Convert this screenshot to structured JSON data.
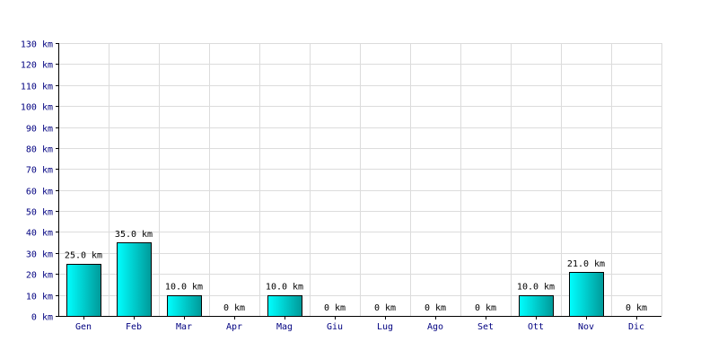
{
  "chart_data": {
    "type": "bar",
    "categories": [
      "Gen",
      "Feb",
      "Mar",
      "Apr",
      "Mag",
      "Giu",
      "Lug",
      "Ago",
      "Set",
      "Ott",
      "Nov",
      "Dic"
    ],
    "values": [
      25.0,
      35.0,
      10.0,
      0,
      10.0,
      0,
      0,
      0,
      0,
      10.0,
      21.0,
      0
    ],
    "data_labels": [
      "25.0 km",
      "35.0 km",
      "10.0 km",
      "0 km",
      "10.0 km",
      "0 km",
      "0 km",
      "0 km",
      "0 km",
      "10.0 km",
      "21.0 km",
      "0 km"
    ],
    "y_ticks": [
      "0 km",
      "10 km",
      "20 km",
      "30 km",
      "40 km",
      "50 km",
      "60 km",
      "70 km",
      "80 km",
      "90 km",
      "100 km",
      "110 km",
      "120 km",
      "130 km"
    ],
    "ylim": [
      0,
      130
    ],
    "grid": true,
    "title": "",
    "xlabel": "",
    "ylabel": "",
    "colors": {
      "bar_light": "#00ffff",
      "bar_dark": "#009999",
      "grid": "#dcdcdc",
      "tick_text": "#000080"
    }
  }
}
